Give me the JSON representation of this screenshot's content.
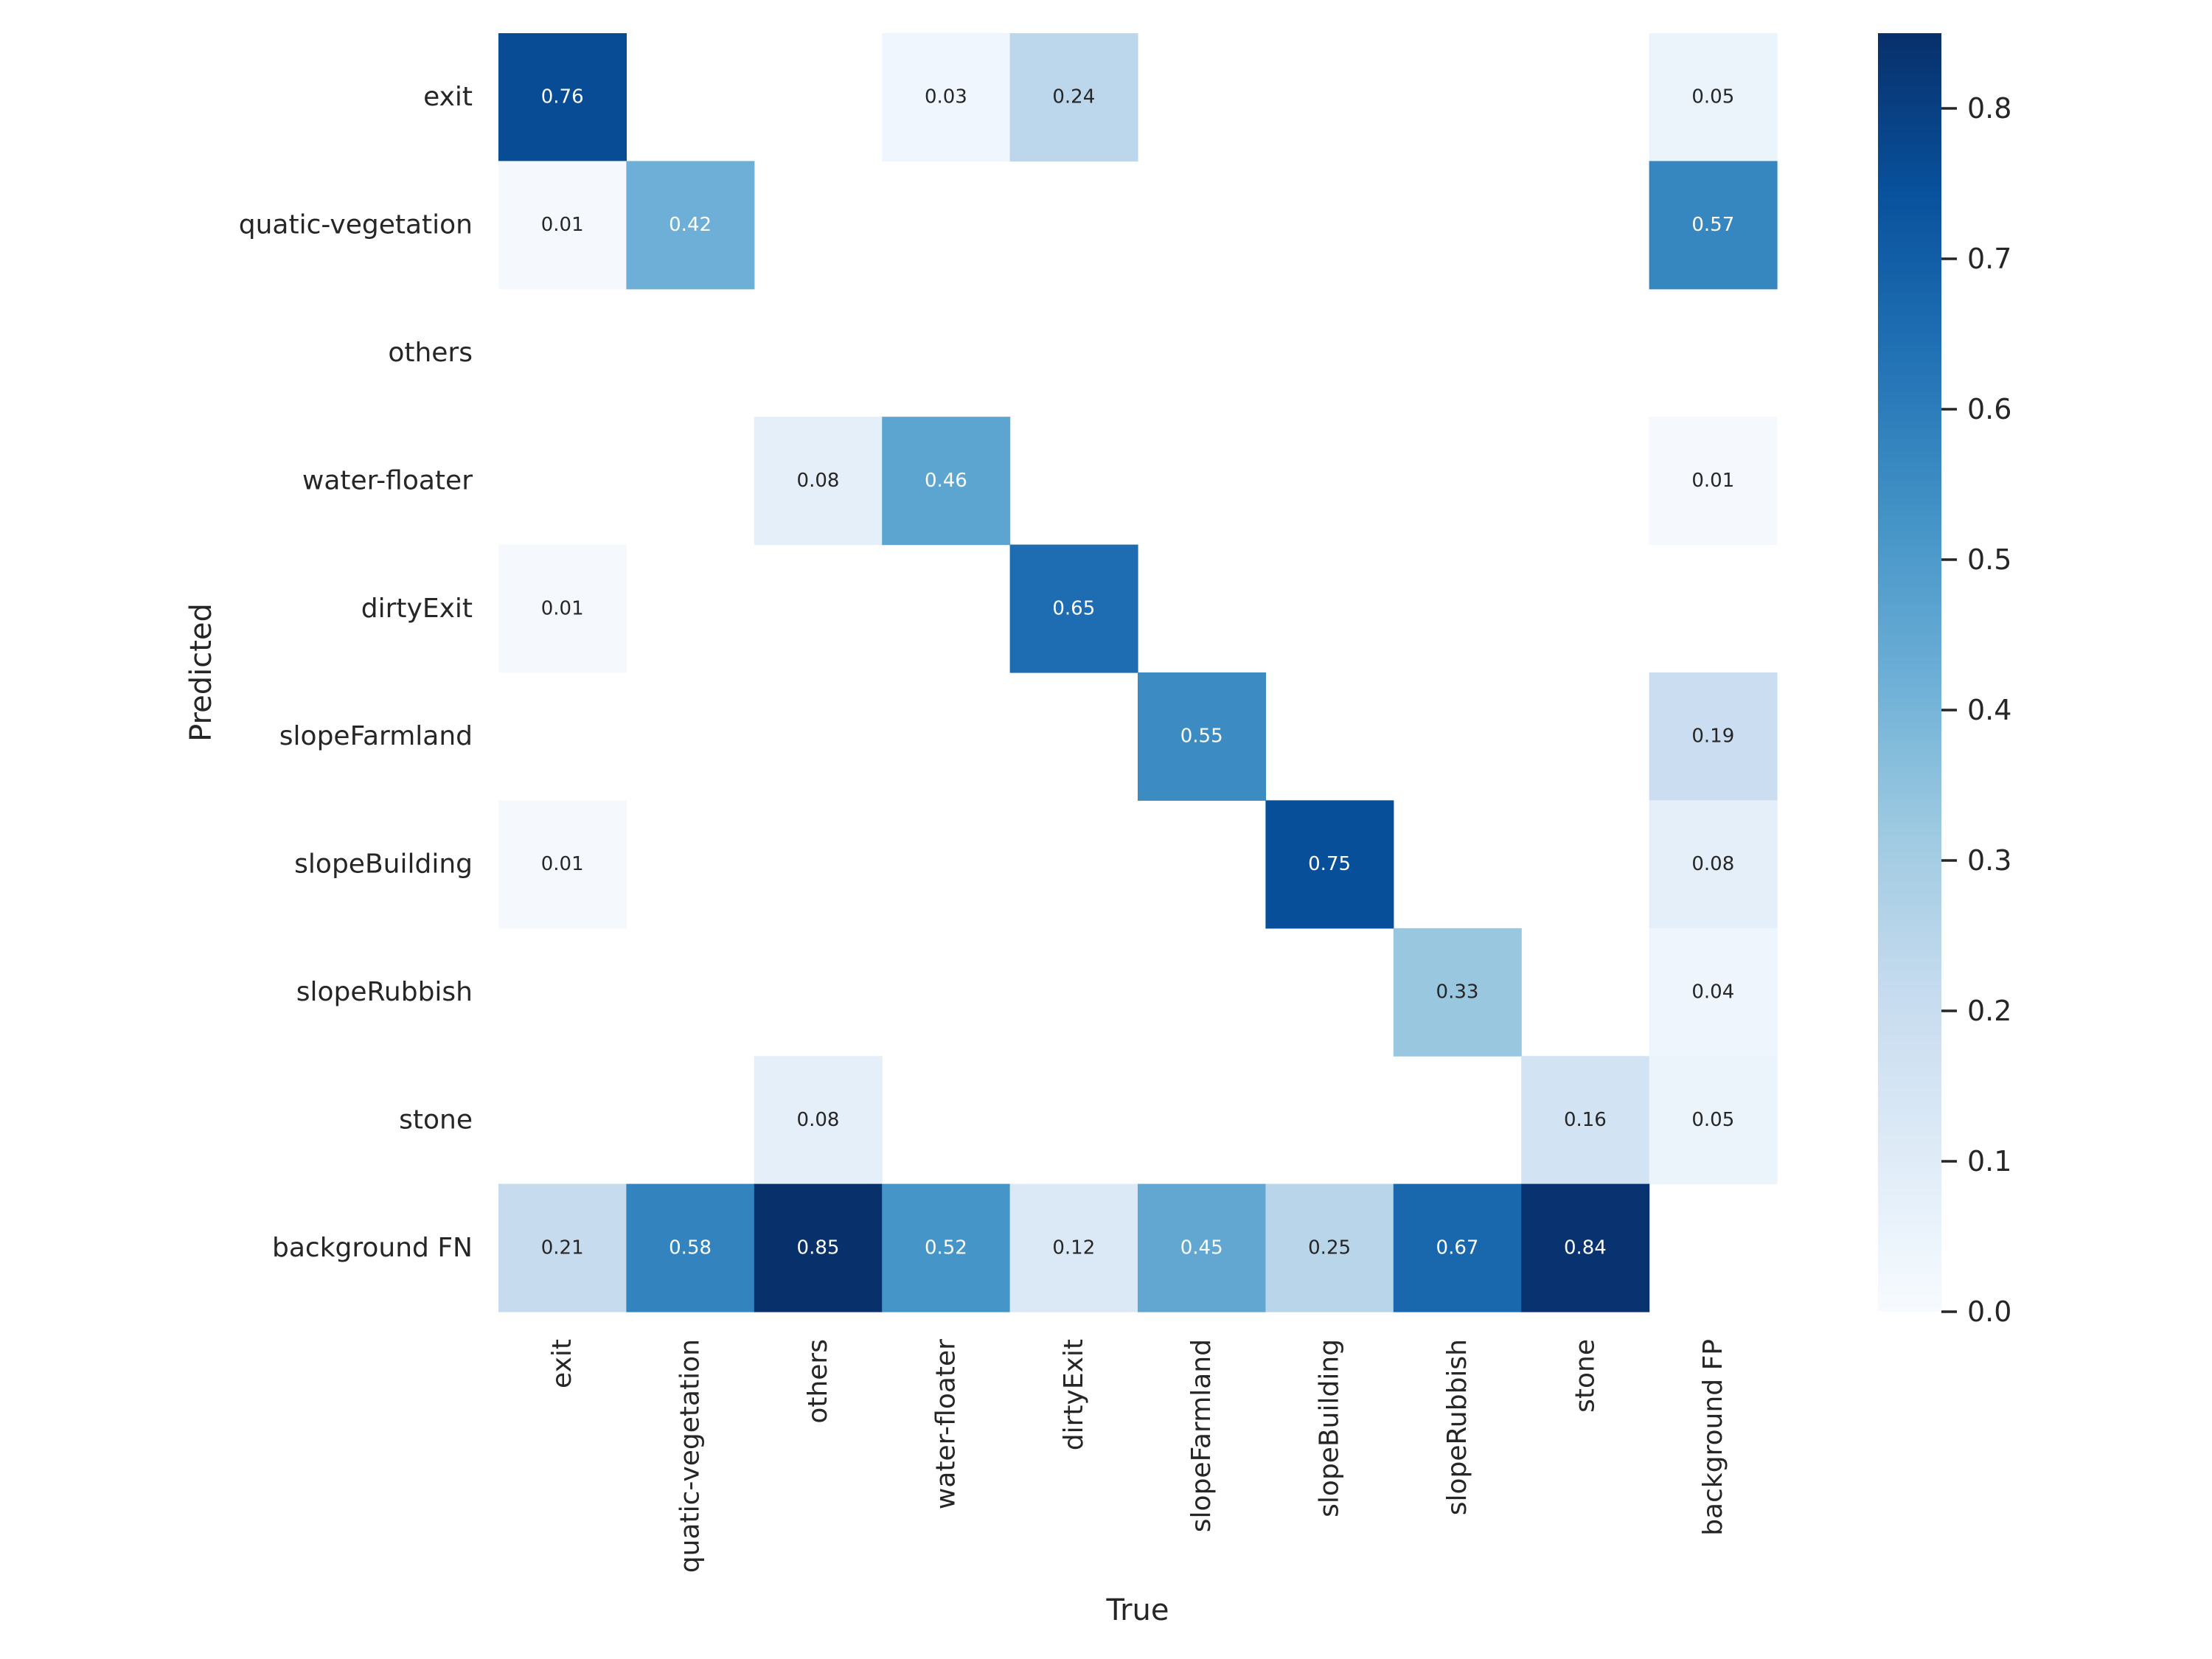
{
  "chart_data": {
    "type": "heatmap",
    "title": "",
    "xlabel": "True",
    "ylabel": "Predicted",
    "x_categories": [
      "exit",
      "quatic-vegetation",
      "others",
      "water-floater",
      "dirtyExit",
      "slopeFarmland",
      "slopeBuilding",
      "slopeRubbish",
      "stone",
      "background FP"
    ],
    "y_categories": [
      "exit",
      "quatic-vegetation",
      "others",
      "water-floater",
      "dirtyExit",
      "slopeFarmland",
      "slopeBuilding",
      "slopeRubbish",
      "stone",
      "background FN"
    ],
    "values": [
      [
        0.76,
        null,
        null,
        0.03,
        0.24,
        null,
        null,
        null,
        null,
        0.05
      ],
      [
        0.01,
        0.42,
        null,
        null,
        null,
        null,
        null,
        null,
        null,
        0.57
      ],
      [
        null,
        null,
        null,
        null,
        null,
        null,
        null,
        null,
        null,
        null
      ],
      [
        null,
        null,
        0.08,
        0.46,
        null,
        null,
        null,
        null,
        null,
        0.01
      ],
      [
        0.01,
        null,
        null,
        null,
        0.65,
        null,
        null,
        null,
        null,
        null
      ],
      [
        null,
        null,
        null,
        null,
        null,
        0.55,
        null,
        null,
        null,
        0.19
      ],
      [
        0.01,
        null,
        null,
        null,
        null,
        null,
        0.75,
        null,
        null,
        0.08
      ],
      [
        null,
        null,
        null,
        null,
        null,
        null,
        null,
        0.33,
        null,
        0.04
      ],
      [
        null,
        null,
        0.08,
        null,
        null,
        null,
        null,
        null,
        0.16,
        0.05
      ],
      [
        0.21,
        0.58,
        0.85,
        0.52,
        0.12,
        0.45,
        0.25,
        0.67,
        0.84,
        null
      ]
    ],
    "colormap": "Blues",
    "colormap_stops": [
      "#f7fbff",
      "#deebf7",
      "#c6dbef",
      "#9ecae1",
      "#6baed6",
      "#4292c6",
      "#2171b5",
      "#08519c",
      "#08306b"
    ],
    "vmin": 0.0,
    "vmax": 0.85,
    "colorbar": {
      "ticks": [
        0.0,
        0.1,
        0.2,
        0.3,
        0.4,
        0.5,
        0.6,
        0.7,
        0.8
      ],
      "tick_labels": [
        "0.0",
        "0.1",
        "0.2",
        "0.3",
        "0.4",
        "0.5",
        "0.6",
        "0.7",
        "0.8"
      ],
      "position": "right"
    },
    "annotation_text_colors": {
      "light": "#ffffff",
      "dark": "#262626"
    },
    "grid": false
  }
}
